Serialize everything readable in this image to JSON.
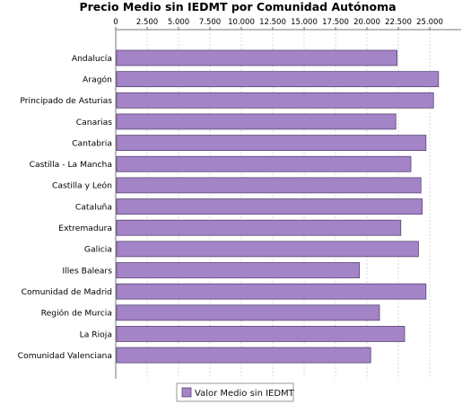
{
  "chart_data": {
    "type": "bar",
    "orientation": "horizontal",
    "title": "Precio Medio sin IEDMT por Comunidad Autónoma",
    "xlabel": "",
    "ylabel": "",
    "xlim": [
      0,
      27500
    ],
    "ticks": [
      0,
      2500,
      5000,
      7500,
      10000,
      12500,
      15000,
      17500,
      20000,
      22500,
      25000
    ],
    "tick_labels": [
      "0",
      "2.500",
      "5.000",
      "7.500",
      "10.000",
      "12.500",
      "15.000",
      "17.500",
      "20.000",
      "22.500",
      "25.000"
    ],
    "tick_position": "top",
    "grid": true,
    "legend_position": "bottom-center",
    "bar_color": "#a384c6",
    "bar_edge_color": "#5a4478",
    "categories": [
      "Andalucía",
      "Aragón",
      "Principado de Asturias",
      "Canarias",
      "Cantabria",
      "Castilla - La Mancha",
      "Castilla y León",
      "Cataluña",
      "Extremadura",
      "Galicia",
      "Illes Balears",
      "Comunidad de Madrid",
      "Región de Murcia",
      "La Rioja",
      "Comunidad Valenciana"
    ],
    "series": [
      {
        "name": "Valor Medio sin IEDMT",
        "values": [
          22400,
          25700,
          25300,
          22300,
          24700,
          23500,
          24300,
          24400,
          22700,
          24100,
          19400,
          24700,
          21000,
          23000,
          20300
        ]
      }
    ]
  }
}
